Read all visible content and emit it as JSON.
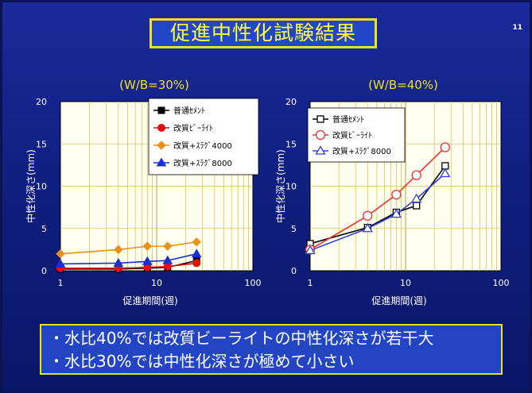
{
  "page": {
    "title": "促進中性化試験結果",
    "page_number": "11",
    "notes": [
      "・水比40%では改質ビーライトの中性化深さが若干大",
      "・水比30%では中性化深さが極めて小さい"
    ]
  },
  "chart_data": [
    {
      "type": "line",
      "title": "(W/B=30%)",
      "xlabel": "促進期間(週)",
      "ylabel": "中性化深さ(mm)",
      "xscale": "log",
      "xlim": [
        1,
        100
      ],
      "ylim": [
        0,
        20
      ],
      "xticks": [
        "1",
        "10",
        "100"
      ],
      "yticks": [
        "0",
        "5",
        "10",
        "15",
        "20"
      ],
      "grid": true,
      "legend_position": "top-right",
      "x": [
        1,
        4,
        8,
        13,
        26
      ],
      "series": [
        {
          "name": "普通ｾﾒﾝﾄ",
          "color": "#000000",
          "marker": "square",
          "filled": true,
          "values": [
            0.2,
            0.2,
            0.3,
            0.4,
            1.2
          ]
        },
        {
          "name": "改質ﾋﾞｰﾗｲﾄ",
          "color": "#e01010",
          "marker": "circle",
          "filled": true,
          "values": [
            0.3,
            0.3,
            0.4,
            0.5,
            0.9
          ]
        },
        {
          "name": "改質+ｽﾗｸﾞ4000",
          "color": "#e89018",
          "marker": "diamond",
          "filled": true,
          "values": [
            2.0,
            2.5,
            2.9,
            2.9,
            3.4
          ]
        },
        {
          "name": "改質+ｽﾗｸﾞ8000",
          "color": "#1830d0",
          "marker": "triangle",
          "filled": true,
          "values": [
            0.8,
            0.9,
            1.1,
            1.2,
            2.0
          ]
        }
      ]
    },
    {
      "type": "line",
      "title": "(W/B=40%)",
      "xlabel": "促進期間(週)",
      "ylabel": "中性化深さ(mm)",
      "xscale": "log",
      "xlim": [
        1,
        100
      ],
      "ylim": [
        0,
        20
      ],
      "xticks": [
        "1",
        "10",
        "100"
      ],
      "yticks": [
        "0",
        "5",
        "10",
        "15",
        "20"
      ],
      "grid": true,
      "legend_position": "top-left",
      "x": [
        1,
        4,
        8,
        13,
        26
      ],
      "series": [
        {
          "name": "普通ｾﾒﾝﾄ",
          "color": "#000000",
          "marker": "square",
          "filled": false,
          "values": [
            3.2,
            5.1,
            6.9,
            7.7,
            12.4
          ]
        },
        {
          "name": "改質ﾋﾞｰﾗｲﾄ",
          "color": "#f03030",
          "marker": "circle",
          "filled": false,
          "values": [
            2.5,
            6.5,
            9.0,
            11.3,
            14.6
          ]
        },
        {
          "name": "改質+ｽﾗｸﾞ8000",
          "color": "#3040e0",
          "marker": "triangle",
          "filled": false,
          "values": [
            2.4,
            5.0,
            6.7,
            8.5,
            11.5
          ]
        }
      ]
    }
  ]
}
